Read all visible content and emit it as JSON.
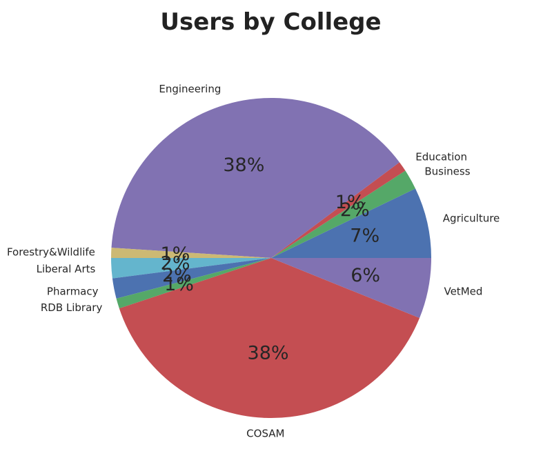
{
  "chart_data": {
    "type": "pie",
    "title": "Users by College",
    "start_angle_deg": 0,
    "direction": "counterclockwise",
    "slices": [
      {
        "label": "Agriculture",
        "value": 7,
        "pct_label": "7%",
        "color": "#4c72b0"
      },
      {
        "label": "Business",
        "value": 2,
        "pct_label": "2%",
        "color": "#55a868"
      },
      {
        "label": "Education",
        "value": 1,
        "pct_label": "1%",
        "color": "#c44e52"
      },
      {
        "label": "Engineering",
        "value": 38,
        "pct_label": "38%",
        "color": "#8172b2"
      },
      {
        "label": "Forestry&Wildlife",
        "value": 1,
        "pct_label": "1%",
        "color": "#ccb974"
      },
      {
        "label": "Liberal Arts",
        "value": 2,
        "pct_label": "2%",
        "color": "#64b5cd"
      },
      {
        "label": "Pharmacy",
        "value": 2,
        "pct_label": "2%",
        "color": "#4c72b0"
      },
      {
        "label": "RDB Library",
        "value": 1,
        "pct_label": "1%",
        "color": "#55a868"
      },
      {
        "label": "COSAM",
        "value": 38,
        "pct_label": "38%",
        "color": "#c44e52"
      },
      {
        "label": "VetMed",
        "value": 6,
        "pct_label": "6%",
        "color": "#8172b2"
      }
    ]
  }
}
